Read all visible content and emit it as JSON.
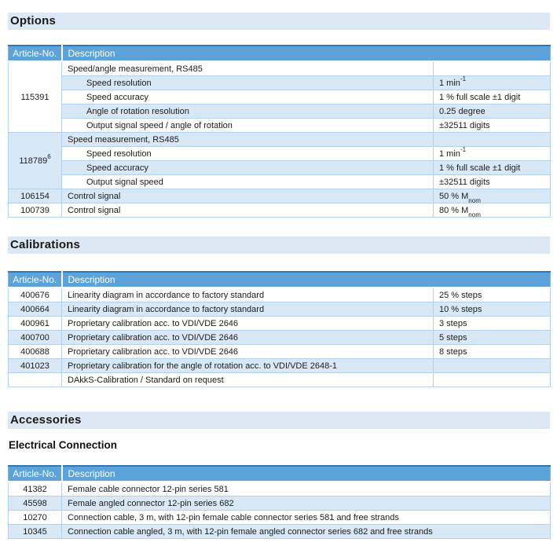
{
  "colors": {
    "header_bg": "#5ba3d9",
    "header_top": "#3078b4",
    "header_text": "#ffffff",
    "row_alt_bg": "#d9e8f6",
    "band_bg": "#dce9f5",
    "border_light": "#b5d1ea",
    "border_strong": "#8cb6dc"
  },
  "headings": {
    "options": "Options",
    "calibrations": "Calibrations",
    "accessories": "Accessories",
    "electrical": "Electrical Connection"
  },
  "tables": {
    "options": {
      "headers": [
        "Article-No.",
        "Description"
      ],
      "value_column": true,
      "rows": [
        {
          "article": {
            "text": "115391"
          },
          "article_span": 5,
          "desc": {
            "text": "Speed/angle measurement, RS485"
          },
          "value": {
            "text": ""
          }
        },
        {
          "desc": {
            "text": "Speed resolution"
          },
          "indent": true,
          "value": {
            "text": "1 min",
            "sup": "-1"
          }
        },
        {
          "desc": {
            "text": "Speed accuracy"
          },
          "indent": true,
          "value": {
            "text": "1 % full scale ±1 digit"
          }
        },
        {
          "desc": {
            "text": "Angle of rotation resolution"
          },
          "indent": true,
          "value": {
            "text": "0.25 degree"
          }
        },
        {
          "desc": {
            "text": "Output signal speed / angle of rotation"
          },
          "indent": true,
          "value": {
            "text": "±32511 digits"
          }
        },
        {
          "article": {
            "text": "118789",
            "sup": "6"
          },
          "article_span": 4,
          "desc": {
            "text": "Speed measurement, RS485"
          },
          "value": {
            "text": ""
          }
        },
        {
          "desc": {
            "text": "Speed resolution"
          },
          "indent": true,
          "value": {
            "text": "1 min",
            "sup": "-1"
          }
        },
        {
          "desc": {
            "text": "Speed accuracy"
          },
          "indent": true,
          "value": {
            "text": "1 % full scale ±1 digit"
          }
        },
        {
          "desc": {
            "text": "Output signal speed"
          },
          "indent": true,
          "value": {
            "text": "±32511 digits"
          }
        },
        {
          "article": {
            "text": "106154"
          },
          "desc": {
            "text": "Control signal"
          },
          "value": {
            "text": "50 % M",
            "sub": "nom"
          }
        },
        {
          "article": {
            "text": "100739"
          },
          "desc": {
            "text": "Control signal"
          },
          "value": {
            "text": "80 % M",
            "sub": "nom"
          }
        }
      ]
    },
    "calibrations": {
      "headers": [
        "Article-No.",
        "Description"
      ],
      "value_column": true,
      "rows": [
        {
          "article": {
            "text": "400676"
          },
          "desc": {
            "text": "Linearity diagram in accordance to factory standard"
          },
          "value": {
            "text": "25 % steps"
          }
        },
        {
          "article": {
            "text": "400664"
          },
          "desc": {
            "text": "Linearity diagram in accordance to factory standard"
          },
          "value": {
            "text": "10 % steps"
          }
        },
        {
          "article": {
            "text": "400961"
          },
          "desc": {
            "text": "Proprietary calibration acc. to VDI/VDE 2646"
          },
          "value": {
            "text": "3 steps"
          }
        },
        {
          "article": {
            "text": "400700"
          },
          "desc": {
            "text": "Proprietary calibration acc. to VDI/VDE 2646"
          },
          "value": {
            "text": "5 steps"
          }
        },
        {
          "article": {
            "text": "400688"
          },
          "desc": {
            "text": "Proprietary calibration acc. to VDI/VDE 2646"
          },
          "value": {
            "text": "8 steps"
          }
        },
        {
          "article": {
            "text": "401023"
          },
          "desc": {
            "text": "Proprietary calibration for the angle of rotation acc. to VDI/VDE 2648-1"
          },
          "value": {
            "text": ""
          }
        },
        {
          "article": {
            "text": ""
          },
          "desc": {
            "text": "DAkkS-Calibration / Standard on request"
          },
          "value": {
            "text": ""
          }
        }
      ]
    },
    "electrical": {
      "headers": [
        "Article-No.",
        "Description"
      ],
      "value_column": false,
      "rows": [
        {
          "article": {
            "text": "41382"
          },
          "desc": {
            "text": "Female cable connector 12-pin series 581"
          }
        },
        {
          "article": {
            "text": "45598"
          },
          "desc": {
            "text": "Female angled connector 12-pin series 682"
          }
        },
        {
          "article": {
            "text": "10270"
          },
          "desc": {
            "text": "Connection cable, 3 m, with 12-pin female cable connector series 581 and free strands"
          }
        },
        {
          "article": {
            "text": "10345"
          },
          "desc": {
            "text": "Connection cable angled, 3 m, with 12-pin female angled connector series 682 and free strands"
          }
        }
      ]
    }
  }
}
